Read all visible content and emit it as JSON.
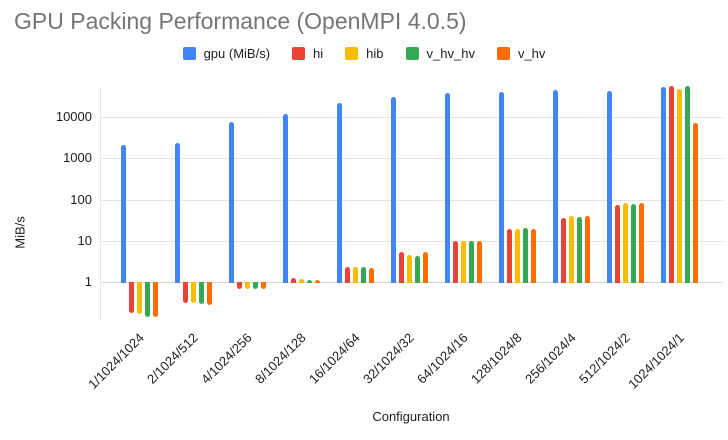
{
  "title": "GPU Packing Performance (OpenMPI 4.0.5)",
  "axes": {
    "x_title": "Configuration",
    "y_title": "MiB/s"
  },
  "chart_data": {
    "type": "bar",
    "title": "GPU Packing Performance (OpenMPI 4.0.5)",
    "xlabel": "Configuration",
    "ylabel": "MiB/s",
    "y_scale": "log",
    "y_ticks": [
      1,
      10,
      100,
      1000,
      10000
    ],
    "ylim": [
      0.1,
      60000
    ],
    "grid": true,
    "legend_position": "top",
    "baseline_value": 1,
    "categories": [
      "1/1024/1024",
      "2/1024/512",
      "4/1024/256",
      "8/1024/128",
      "16/1024/64",
      "32/1024/32",
      "64/1024/16",
      "128/1024/8",
      "256/1024/4",
      "512/1024/2",
      "1024/1024/1"
    ],
    "series": [
      {
        "name": "gpu (MiB/s)",
        "color": "#4285F4",
        "values": [
          2100,
          2400,
          7700,
          11600,
          21500,
          31000,
          38500,
          41500,
          45500,
          43000,
          52000
        ]
      },
      {
        "name": "hi",
        "color": "#EA4335",
        "values": [
          0.18,
          0.31,
          0.68,
          1.25,
          2.3,
          5.2,
          10,
          19,
          36,
          74,
          55000
        ]
      },
      {
        "name": "hib",
        "color": "#FBBC04",
        "values": [
          0.17,
          0.31,
          0.67,
          1.18,
          2.3,
          4.6,
          9.8,
          19,
          40,
          80,
          49000
        ]
      },
      {
        "name": "v_hv_hv",
        "color": "#34A853",
        "values": [
          0.14,
          0.29,
          0.66,
          1.12,
          2.3,
          4.2,
          9.9,
          20,
          38,
          77,
          57000
        ]
      },
      {
        "name": "v_hv",
        "color": "#FF6D01",
        "values": [
          0.14,
          0.28,
          0.67,
          1.14,
          2.2,
          5.2,
          10,
          19,
          40,
          80,
          7000
        ]
      }
    ]
  }
}
